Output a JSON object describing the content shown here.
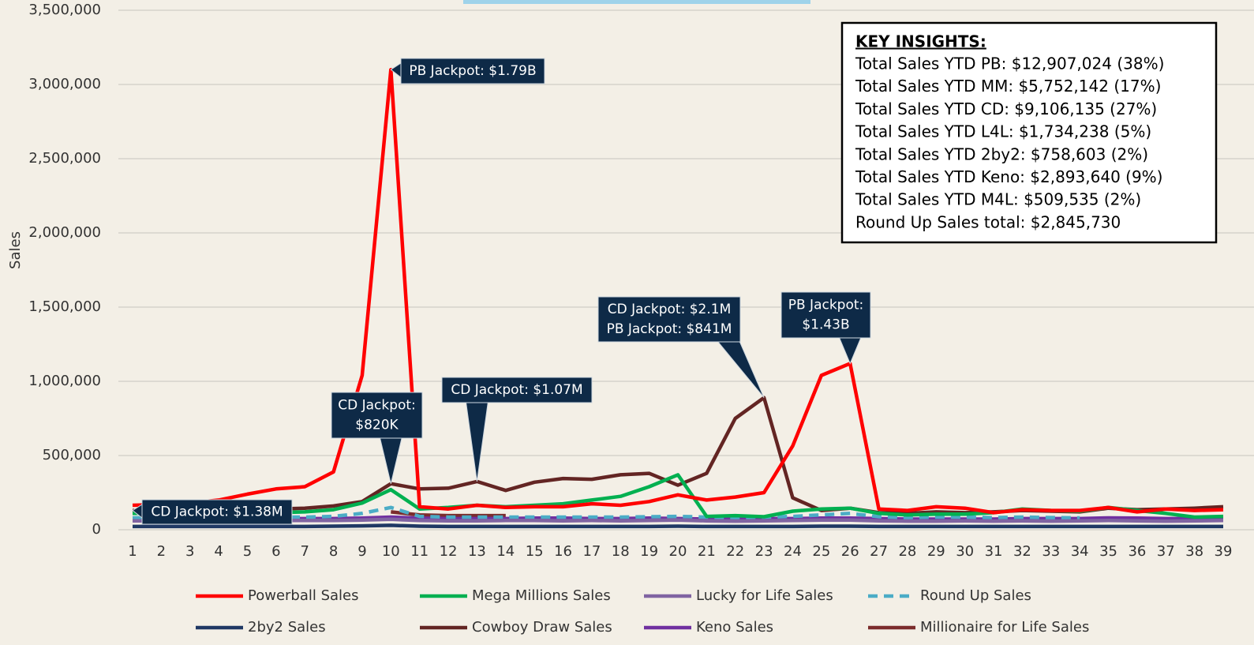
{
  "chart_data": {
    "type": "line",
    "y_label": "Sales",
    "categories": [
      1,
      2,
      3,
      4,
      5,
      6,
      7,
      8,
      9,
      10,
      11,
      12,
      13,
      14,
      15,
      16,
      17,
      18,
      19,
      20,
      21,
      22,
      23,
      24,
      25,
      26,
      27,
      28,
      29,
      30,
      31,
      32,
      33,
      34,
      35,
      36,
      37,
      38,
      39
    ],
    "ylim": [
      0,
      3500000
    ],
    "yticks": [
      0,
      {
        "value": 500000,
        "label": "500,000"
      },
      {
        "value": 1000000,
        "label": "1,000,000"
      },
      {
        "value": 1500000,
        "label": "1,500,000"
      },
      {
        "value": 2000000,
        "label": "2,000,000"
      },
      {
        "value": 2500000,
        "label": "2,500,000"
      },
      {
        "value": 3000000,
        "label": "3,000,000"
      },
      {
        "value": 3500000,
        "label": "3,500,000"
      }
    ],
    "grid": true,
    "series": [
      {
        "name": "Powerball Sales",
        "color": "#ff0000",
        "values": [
          165000,
          170000,
          180000,
          200000,
          240000,
          275000,
          290000,
          390000,
          1040000,
          3100000,
          155000,
          140000,
          165000,
          150000,
          155000,
          155000,
          175000,
          165000,
          190000,
          235000,
          200000,
          220000,
          250000,
          565000,
          1040000,
          1120000,
          140000,
          130000,
          155000,
          145000,
          115000,
          135000,
          130000,
          130000,
          150000,
          120000,
          140000,
          130000,
          135000
        ]
      },
      {
        "name": "Mega Millions Sales",
        "color": "#00b050",
        "values": [
          110000,
          110000,
          110000,
          115000,
          115000,
          115000,
          120000,
          135000,
          180000,
          270000,
          140000,
          150000,
          165000,
          155000,
          165000,
          175000,
          200000,
          225000,
          290000,
          370000,
          90000,
          95000,
          88000,
          125000,
          140000,
          145000,
          110000,
          100000,
          105000,
          105000,
          115000,
          140000,
          130000,
          125000,
          150000,
          130000,
          110000,
          85000,
          90000
        ]
      },
      {
        "name": "Lucky for Life Sales",
        "color": "#8064a2",
        "values": [
          60000,
          60000,
          62000,
          62000,
          60000,
          62000,
          63000,
          62000,
          65000,
          70000,
          62000,
          60000,
          60000,
          62000,
          62000,
          60000,
          62000,
          60000,
          62000,
          65000,
          60000,
          58000,
          60000,
          62000,
          65000,
          65000,
          60000,
          58000,
          58000,
          60000,
          58000,
          60000,
          58000,
          60000,
          62000,
          60000,
          58000,
          60000,
          62000
        ]
      },
      {
        "name": "Round Up Sales",
        "color": "#4bacc6",
        "dash": true,
        "values": [
          80000,
          82000,
          82000,
          80000,
          82000,
          85000,
          85000,
          90000,
          110000,
          150000,
          90000,
          85000,
          85000,
          85000,
          85000,
          85000,
          85000,
          85000,
          88000,
          90000,
          85000,
          82000,
          85000,
          90000,
          100000,
          110000,
          88000,
          82000,
          85000,
          85000,
          82000,
          85000,
          82000,
          80000,
          null,
          null,
          null,
          null,
          null
        ]
      },
      {
        "name": "2by2 Sales",
        "color": "#1f3864",
        "values": [
          22000,
          22000,
          22000,
          22000,
          22000,
          22000,
          22000,
          24000,
          26000,
          30000,
          24000,
          22000,
          22000,
          22000,
          22000,
          22000,
          22000,
          22000,
          22000,
          24000,
          22000,
          22000,
          22000,
          22000,
          24000,
          24000,
          22000,
          22000,
          22000,
          22000,
          22000,
          22000,
          22000,
          22000,
          22000,
          22000,
          22000,
          22000,
          22000
        ]
      },
      {
        "name": "Cowboy Draw Sales",
        "color": "#632523",
        "values": [
          130000,
          125000,
          130000,
          135000,
          140000,
          140000,
          145000,
          160000,
          190000,
          310000,
          275000,
          280000,
          325000,
          265000,
          320000,
          345000,
          340000,
          370000,
          380000,
          300000,
          380000,
          750000,
          890000,
          215000,
          130000,
          145000,
          115000,
          110000,
          120000,
          115000,
          120000,
          130000,
          125000,
          120000,
          145000,
          135000,
          140000,
          145000,
          155000
        ]
      },
      {
        "name": "Keno Sales",
        "color": "#7030a0",
        "values": [
          75000,
          75000,
          75000,
          75000,
          75000,
          75000,
          75000,
          75000,
          78000,
          85000,
          78000,
          75000,
          75000,
          75000,
          78000,
          78000,
          75000,
          75000,
          78000,
          75000,
          72000,
          72000,
          75000,
          75000,
          78000,
          78000,
          75000,
          72000,
          72000,
          72000,
          72000,
          75000,
          75000,
          75000,
          80000,
          78000,
          75000,
          75000,
          78000
        ]
      },
      {
        "name": "Millionaire for Life Sales",
        "color": "#7b2c2c",
        "values": [
          null,
          null,
          null,
          null,
          null,
          null,
          null,
          null,
          null,
          120000,
          100000,
          95000,
          95000,
          95000,
          null,
          null,
          null,
          null,
          null,
          null,
          null,
          null,
          null,
          null,
          null,
          null,
          null,
          null,
          null,
          null,
          null,
          null,
          null,
          null,
          null,
          null,
          null,
          null,
          null
        ]
      }
    ],
    "annotations": [
      [
        "CD Jackpot: $1.38M"
      ],
      [
        "CD Jackpot:",
        "$820K"
      ],
      [
        "CD Jackpot: $1.07M"
      ],
      [
        "CD Jackpot: $2.1M",
        "PB Jackpot: $841M"
      ],
      [
        "PB Jackpot:",
        "$1.43B"
      ],
      [
        "PB Jackpot: $1.79B"
      ]
    ],
    "insights": {
      "title": "KEY INSIGHTS:",
      "lines": [
        "Total Sales YTD PB: $12,907,024 (38%)",
        "Total Sales YTD MM: $5,752,142 (17%)",
        "Total Sales YTD CD: $9,106,135 (27%)",
        "Total Sales YTD L4L: $1,734,238 (5%)",
        "Total Sales YTD 2by2: $758,603 (2%)",
        "Total Sales YTD Keno: $2,893,640 (9%)",
        "Total Sales YTD M4L: $509,535 (2%)",
        "Round Up Sales total: $2,845,730"
      ]
    }
  }
}
